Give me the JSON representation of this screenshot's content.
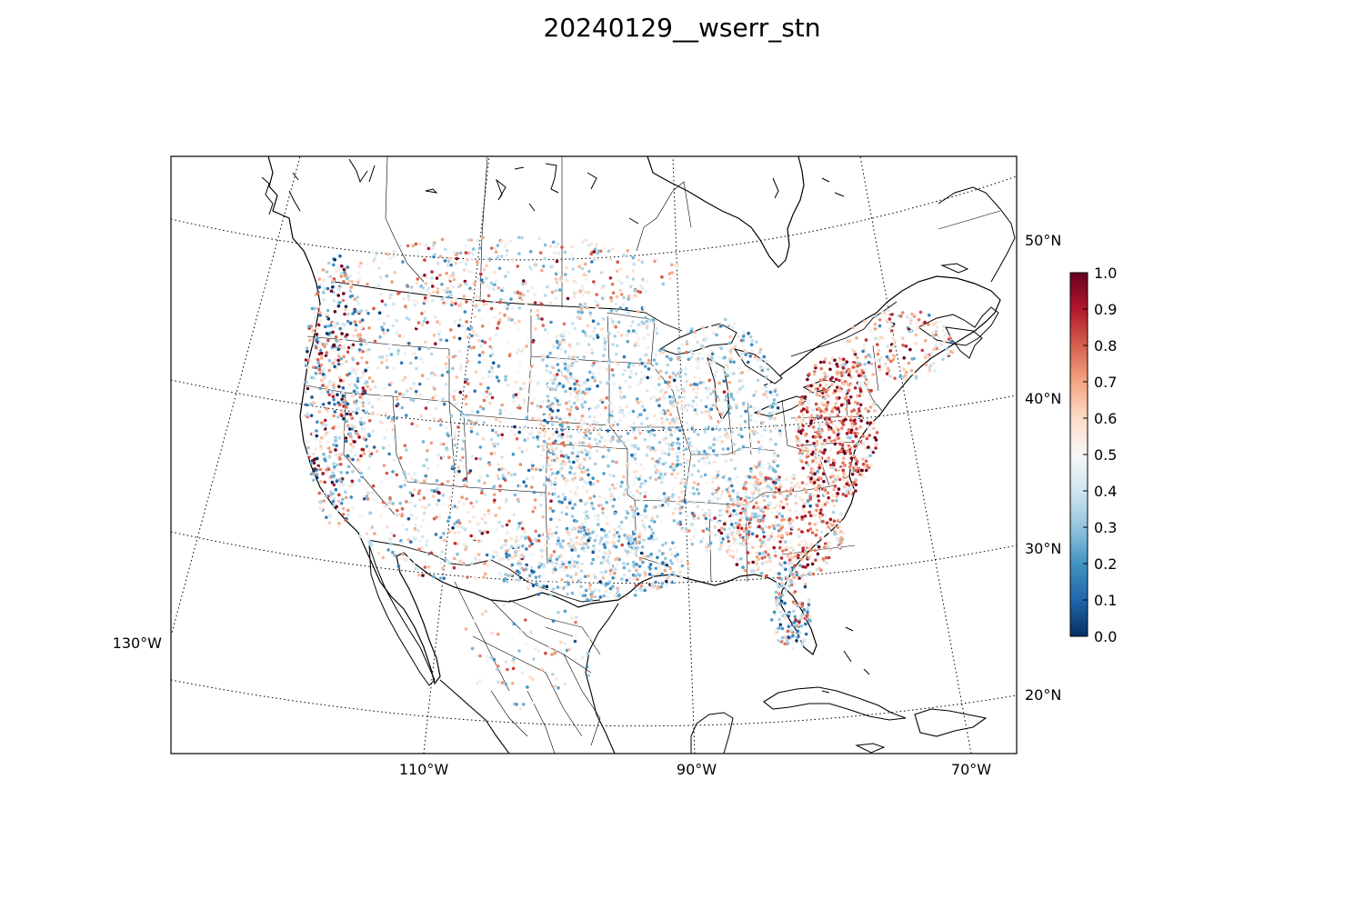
{
  "title": "20240129__wserr_stn",
  "map": {
    "projection": "lambert-conformal-conic",
    "graticule_style": "dotted",
    "lon_labels": [
      "130°W",
      "110°W",
      "90°W",
      "70°W"
    ],
    "lat_labels": [
      "20°N",
      "30°N",
      "40°N",
      "50°N"
    ]
  },
  "colorbar": {
    "colormap": "RdBu_r",
    "min": 0.0,
    "max": 1.0,
    "tick_labels": [
      "0.0",
      "0.1",
      "0.2",
      "0.3",
      "0.4",
      "0.5",
      "0.6",
      "0.7",
      "0.8",
      "0.9",
      "1.0"
    ],
    "colors": [
      "#053061",
      "#2166ac",
      "#4393c3",
      "#92c5de",
      "#d1e5f0",
      "#f7f7f7",
      "#fddbc7",
      "#f4a582",
      "#d6604d",
      "#b2182b",
      "#67001f"
    ]
  }
}
